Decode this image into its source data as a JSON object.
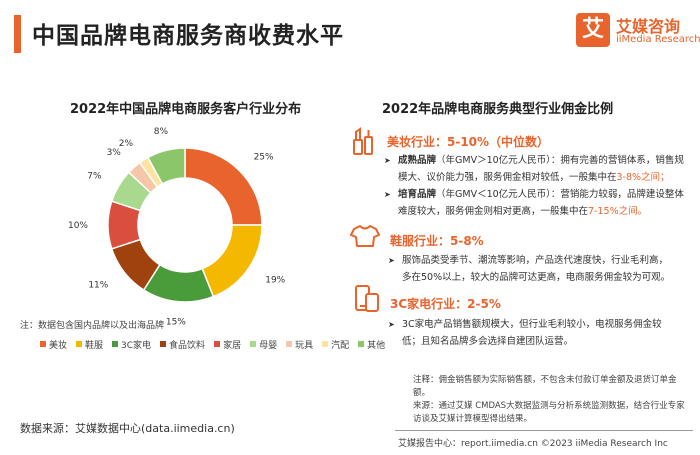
{
  "header": {
    "title": "中国品牌电商服务商收费水平",
    "logo_char": "艾",
    "logo_name": "艾媒咨询",
    "logo_sub": "iiMedia Research"
  },
  "chart_data": {
    "type": "pie",
    "title": "2022年中国品牌电商服务客户行业分布",
    "categories": [
      "美妆",
      "鞋服",
      "3C家电",
      "食品饮料",
      "家居",
      "母婴",
      "玩具",
      "汽配",
      "其他"
    ],
    "values": [
      25,
      19,
      15,
      11,
      10,
      7,
      3,
      2,
      8
    ],
    "value_labels": [
      "25%",
      "19%",
      "15%",
      "11%",
      "10%",
      "7%",
      "3%",
      "2%",
      "8%"
    ],
    "colors": [
      "#e8642c",
      "#f5b800",
      "#4a9b3a",
      "#a0420d",
      "#d94e3c",
      "#a9d98f",
      "#f5c6a8",
      "#fbe3a0",
      "#8cc66a"
    ],
    "legend_position": "bottom",
    "note": "注：数据包含国内品牌以及出海品牌"
  },
  "right": {
    "title": "2022年品牌电商服务典型行业佣金比例",
    "sections": [
      {
        "title": "美妆行业：5-10%（中位数）",
        "bullets": [
          {
            "bold": "成熟品牌",
            "text_lines": [
              "（年GMV＞10亿元人民币）：拥有完善的营销体系，销售规",
              "模大、议价能力强，服务佣金相对较低，一般集中在"
            ],
            "highlight": "3-8%之间；"
          },
          {
            "bold": "培育品牌",
            "text_lines": [
              "（年GMV＜10亿元人民币）：营销能力较弱，品牌建设整体",
              "难度较大，服务佣金则相对更高，一般集中在"
            ],
            "highlight": "7-15%之间。"
          }
        ]
      },
      {
        "title": "鞋服行业：5-8%",
        "lines": [
          "服饰品类受季节、潮流等影响，产品迭代速度快，行业毛利高，",
          "多在50%以上，较大的品牌可达更高，电商服务佣金较为可观。"
        ]
      },
      {
        "title": "3C家电行业：2-5%",
        "lines": [
          "3C家电产品销售额规模大，但行业毛利较小，电视服务佣金较",
          "低；且知名品牌多会选择自建团队运营。"
        ]
      }
    ]
  },
  "notes": {
    "note_lines": [
      "注释：佣金销售额为实际销售额，不包含未付款订单金额及退货订单金",
      "额。",
      "来源：通过艾媒 CMDAS大数据监测与分析系统监测数据，结合行业专家",
      "访谈及艾媒计算模型得出结果。"
    ],
    "source_left": "数据来源：艾媒数据中心(data.iimedia.cn)",
    "source_right": "艾媒报告中心：report.iimedia.cn    ©2023  iiMedia Research  Inc"
  }
}
